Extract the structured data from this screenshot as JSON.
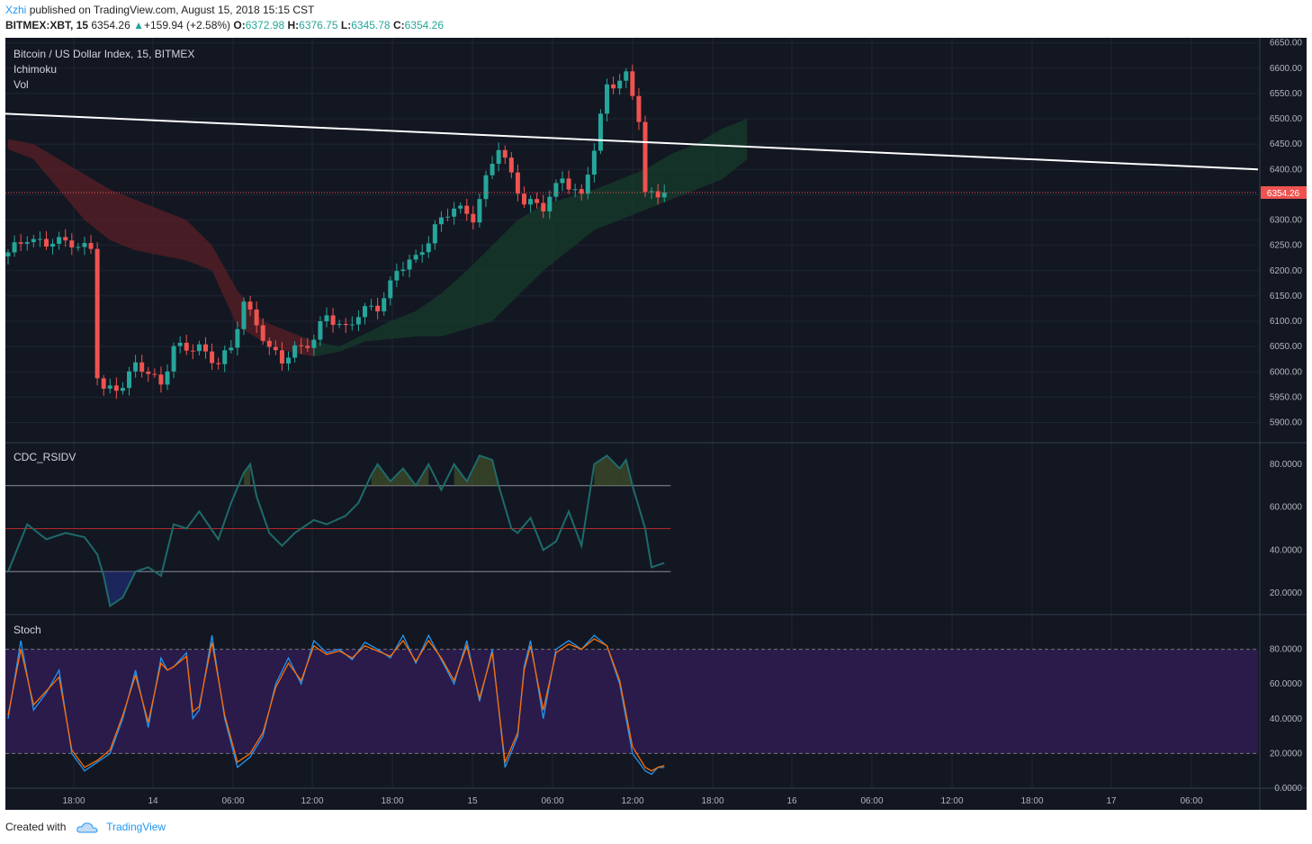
{
  "header": {
    "author": "Xzhi",
    "published": "published on TradingView.com, August 15, 2018 15:15 CST",
    "symbol": "BITMEX:XBT, 15",
    "last": "6354.26",
    "change_arrow": "▲",
    "change": "+159.94 (+2.58%)",
    "o_label": "O:",
    "o_value": "6372.98",
    "h_label": "H:",
    "h_value": "6376.75",
    "l_label": "L:",
    "l_value": "6345.78",
    "c_label": "C:",
    "c_value": "6354.26"
  },
  "panes": {
    "main_title": "Bitcoin / US Dollar Index, 15, BITMEX",
    "indicator1": "Ichimoku",
    "indicator2": "Vol",
    "rsi_title": "CDC_RSIDV",
    "stoch_title": "Stoch"
  },
  "footer": {
    "created_with": "Created with",
    "brand": "TradingView"
  },
  "colors": {
    "background": "#131722",
    "up": "#26a69a",
    "down": "#ef5350",
    "trendline": "#ffffff",
    "price_line": "#ef5350",
    "rsi_line": "#1e6b6b",
    "stoch_k": "#2196f3",
    "stoch_d": "#ff6d00",
    "stoch_band": "#2a1b4a"
  },
  "chart_data": [
    {
      "type": "candlestick",
      "title": "Bitcoin / US Dollar Index, 15, BITMEX",
      "ylim": [
        5860,
        6660
      ],
      "y_ticks": [
        "6650.00",
        "6600.00",
        "6550.00",
        "6500.00",
        "6450.00",
        "6400.00",
        "6350.00",
        "6300.00",
        "6250.00",
        "6200.00",
        "6150.00",
        "6100.00",
        "6050.00",
        "6000.00",
        "5950.00",
        "5900.00"
      ],
      "last_price_label": "6354.26",
      "last_price": 6354.26,
      "x_ticks": [
        "18:00",
        "14",
        "06:00",
        "12:00",
        "18:00",
        "15",
        "06:00",
        "12:00",
        "18:00",
        "16",
        "06:00",
        "12:00",
        "18:00",
        "17",
        "06:00"
      ],
      "trendline": {
        "start": {
          "bar": 0,
          "price": 6510
        },
        "end": {
          "bar": 196,
          "price": 6400
        }
      },
      "ichimoku_cloud_upper": [
        6460,
        6450,
        6420,
        6390,
        6360,
        6340,
        6320,
        6300,
        6250,
        6160,
        6100,
        6080,
        6060,
        6050,
        6075,
        6100,
        6120,
        6155,
        6200,
        6250,
        6300,
        6330,
        6345,
        6360,
        6380,
        6400,
        6430,
        6450,
        6480,
        6500
      ],
      "ichimoku_cloud_lower": [
        6440,
        6420,
        6360,
        6300,
        6260,
        6240,
        6230,
        6220,
        6200,
        6090,
        6060,
        6040,
        6030,
        6040,
        6060,
        6065,
        6070,
        6070,
        6085,
        6100,
        6150,
        6200,
        6240,
        6280,
        6300,
        6320,
        6340,
        6360,
        6380,
        6420
      ],
      "close_anchors": [
        [
          0,
          6230
        ],
        [
          3,
          6270
        ],
        [
          6,
          6250
        ],
        [
          10,
          6260
        ],
        [
          13,
          6240
        ],
        [
          14,
          5990
        ],
        [
          15,
          5960
        ],
        [
          18,
          5980
        ],
        [
          20,
          6010
        ],
        [
          24,
          5980
        ],
        [
          26,
          6050
        ],
        [
          28,
          6040
        ],
        [
          30,
          6050
        ],
        [
          33,
          6020
        ],
        [
          35,
          6040
        ],
        [
          37,
          6140
        ],
        [
          39,
          6100
        ],
        [
          41,
          6040
        ],
        [
          43,
          6020
        ],
        [
          45,
          6050
        ],
        [
          48,
          6060
        ],
        [
          50,
          6110
        ],
        [
          53,
          6090
        ],
        [
          55,
          6110
        ],
        [
          58,
          6130
        ],
        [
          61,
          6200
        ],
        [
          64,
          6220
        ],
        [
          67,
          6290
        ],
        [
          70,
          6320
        ],
        [
          73,
          6310
        ],
        [
          75,
          6380
        ],
        [
          77,
          6440
        ],
        [
          79,
          6390
        ],
        [
          81,
          6340
        ],
        [
          84,
          6320
        ],
        [
          87,
          6390
        ],
        [
          90,
          6340
        ],
        [
          92,
          6440
        ],
        [
          94,
          6570
        ],
        [
          97,
          6580
        ],
        [
          99,
          6500
        ],
        [
          100,
          6355
        ],
        [
          103,
          6354.26
        ]
      ]
    },
    {
      "type": "line",
      "title": "CDC_RSIDV",
      "ylim": [
        10,
        90
      ],
      "y_ticks": [
        "80.0000",
        "60.0000",
        "40.0000",
        "20.0000"
      ],
      "levels": [
        70,
        50,
        30
      ],
      "x": [
        0,
        3,
        6,
        9,
        12,
        14,
        15,
        16,
        18,
        20,
        22,
        24,
        26,
        28,
        30,
        33,
        35,
        37,
        38,
        39,
        41,
        43,
        45,
        48,
        50,
        53,
        55,
        57,
        58,
        60,
        62,
        64,
        66,
        68,
        70,
        72,
        74,
        76,
        77,
        79,
        80,
        82,
        84,
        86,
        88,
        90,
        92,
        94,
        96,
        97,
        98,
        100,
        101,
        102,
        103
      ],
      "values": [
        30,
        52,
        45,
        48,
        46,
        38,
        28,
        14,
        18,
        30,
        32,
        28,
        52,
        50,
        58,
        45,
        62,
        76,
        80,
        65,
        48,
        42,
        48,
        54,
        52,
        56,
        62,
        75,
        80,
        72,
        78,
        70,
        80,
        68,
        80,
        72,
        84,
        82,
        70,
        50,
        48,
        55,
        40,
        44,
        58,
        42,
        80,
        84,
        78,
        82,
        70,
        50,
        32,
        33,
        34
      ]
    },
    {
      "type": "line",
      "title": "Stoch",
      "ylim": [
        0,
        100
      ],
      "y_ticks": [
        "80.0000",
        "60.0000",
        "40.0000",
        "20.0000",
        "0.0000"
      ],
      "levels": [
        80,
        20
      ],
      "x": [
        0,
        2,
        4,
        6,
        8,
        10,
        12,
        14,
        16,
        18,
        20,
        22,
        24,
        25,
        26,
        28,
        29,
        30,
        32,
        34,
        36,
        38,
        40,
        42,
        44,
        46,
        48,
        50,
        52,
        54,
        56,
        58,
        60,
        62,
        64,
        66,
        68,
        70,
        72,
        74,
        76,
        78,
        80,
        81,
        82,
        84,
        86,
        88,
        90,
        92,
        94,
        96,
        98,
        100,
        101,
        102,
        103
      ],
      "series": [
        {
          "values": [
            40,
            85,
            45,
            55,
            68,
            20,
            10,
            15,
            20,
            40,
            68,
            35,
            75,
            68,
            70,
            78,
            40,
            45,
            88,
            40,
            12,
            18,
            30,
            60,
            75,
            60,
            85,
            78,
            80,
            74,
            84,
            80,
            75,
            88,
            72,
            88,
            74,
            60,
            85,
            50,
            80,
            12,
            30,
            70,
            85,
            40,
            80,
            85,
            80,
            88,
            82,
            60,
            20,
            10,
            8,
            12,
            12
          ]
        },
        {
          "values": [
            42,
            80,
            48,
            56,
            64,
            22,
            12,
            16,
            22,
            42,
            65,
            38,
            72,
            68,
            70,
            76,
            44,
            47,
            84,
            42,
            15,
            20,
            32,
            58,
            72,
            62,
            82,
            77,
            79,
            75,
            82,
            79,
            76,
            85,
            73,
            85,
            75,
            62,
            82,
            52,
            78,
            15,
            32,
            68,
            82,
            45,
            78,
            83,
            80,
            86,
            82,
            62,
            24,
            12,
            10,
            12,
            13
          ]
        }
      ]
    }
  ]
}
